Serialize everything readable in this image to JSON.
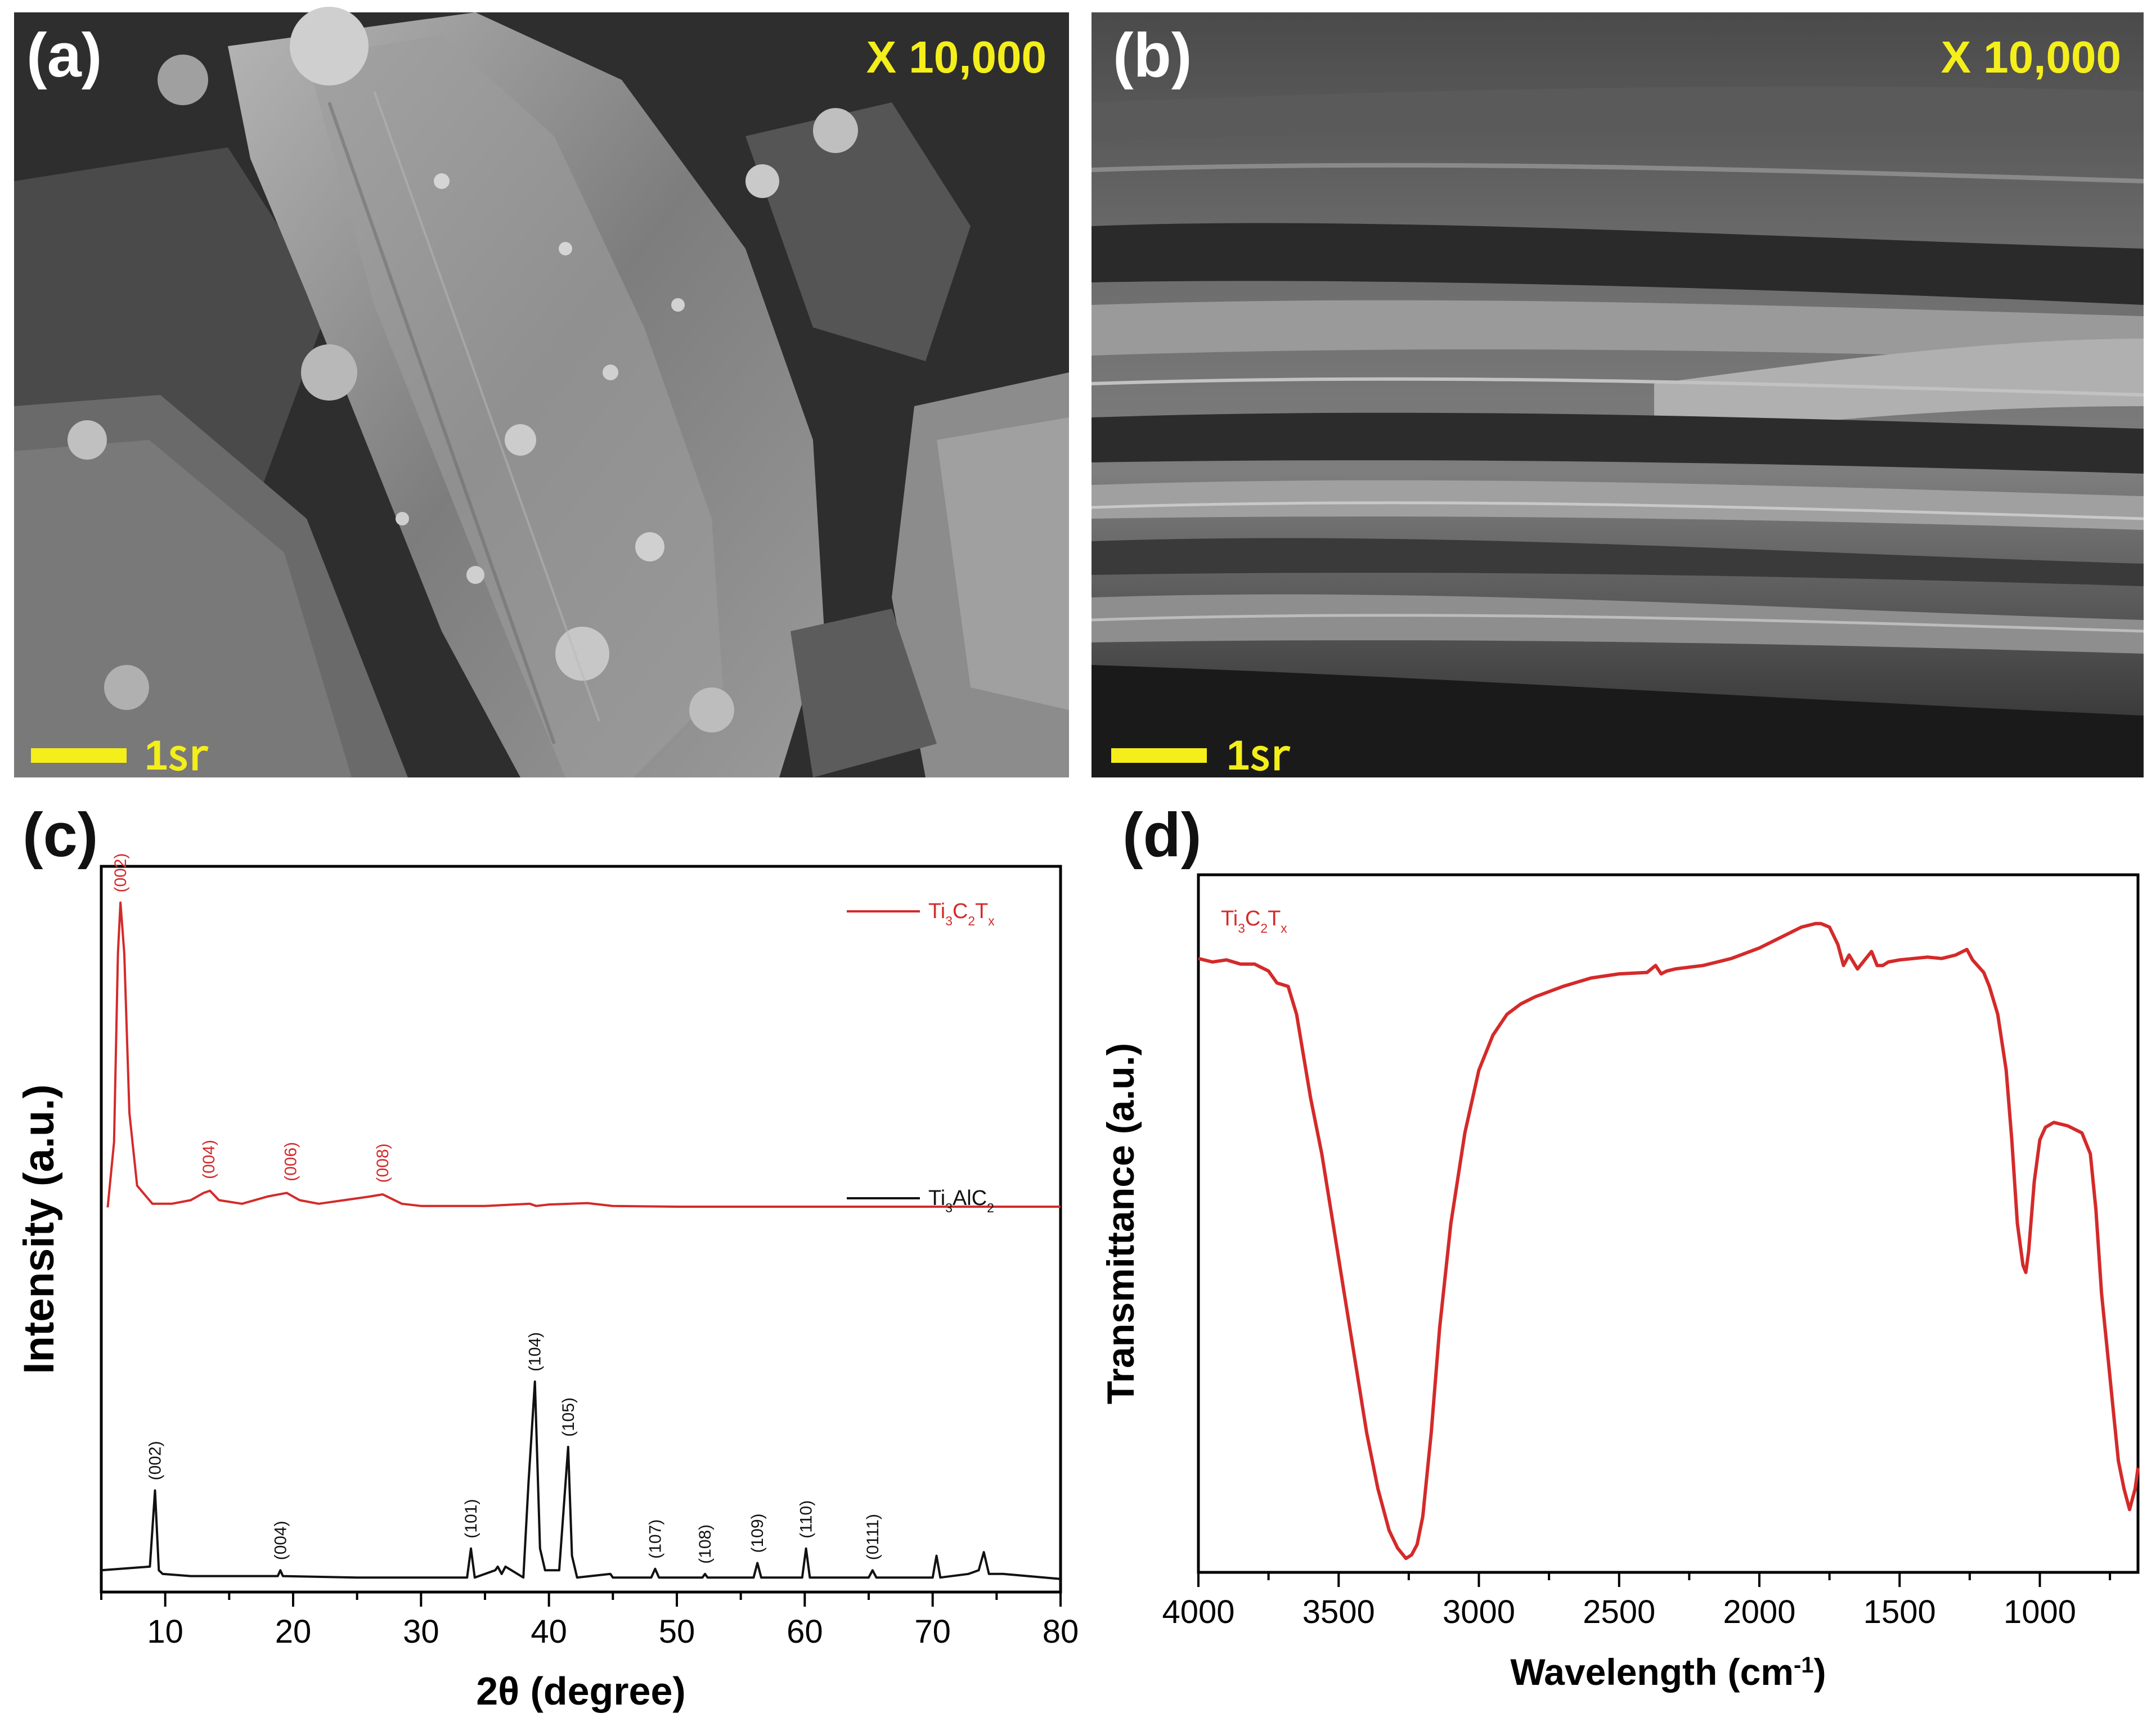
{
  "panels": {
    "a": {
      "letter": "(a)",
      "magnification": "X 10,000",
      "scale": "1㏛"
    },
    "b": {
      "letter": "(b)",
      "magnification": "X 10,000",
      "scale": "1㏛"
    },
    "c": {
      "letter": "(c)"
    },
    "d": {
      "letter": "(d)"
    }
  },
  "colors": {
    "red": "#d42a2a",
    "black": "#111111",
    "yellow": "#f4ee1b"
  },
  "chart_data": [
    {
      "id": "c",
      "type": "line",
      "xlabel": "2θ (degree)",
      "ylabel": "Intensity (a.u.)",
      "xlim": [
        5,
        80
      ],
      "xticks": [
        10,
        20,
        30,
        40,
        50,
        60,
        70,
        80
      ],
      "yticks_shown": false,
      "legend_placement": "right",
      "series": [
        {
          "name": "Ti3C2Tx",
          "legend_parts": [
            "Ti",
            "3",
            "C",
            "2",
            "T",
            "x"
          ],
          "color": "#d42a2a",
          "baseline": 0.53,
          "x": [
            5.5,
            6.0,
            6.3,
            6.5,
            6.8,
            7.2,
            7.8,
            9.0,
            10.5,
            12.0,
            13.0,
            13.5,
            14.2,
            16,
            18,
            19.5,
            20.5,
            22,
            24,
            26,
            27,
            28.5,
            30,
            35,
            38.5,
            39,
            40,
            43,
            45,
            50,
            60,
            70,
            80
          ],
          "y": [
            0.53,
            0.62,
            0.88,
            0.95,
            0.88,
            0.66,
            0.56,
            0.535,
            0.535,
            0.54,
            0.55,
            0.553,
            0.54,
            0.535,
            0.545,
            0.55,
            0.54,
            0.535,
            0.54,
            0.545,
            0.548,
            0.535,
            0.532,
            0.532,
            0.535,
            0.532,
            0.534,
            0.536,
            0.532,
            0.531,
            0.531,
            0.531,
            0.531
          ],
          "peaks": [
            {
              "x": 6.5,
              "y": 0.95,
              "label": "(002)"
            },
            {
              "x": 13.4,
              "y": 0.555,
              "label": "(004)"
            },
            {
              "x": 19.8,
              "y": 0.552,
              "label": "(006)"
            },
            {
              "x": 27.0,
              "y": 0.55,
              "label": "(008)"
            }
          ]
        },
        {
          "name": "Ti3AlC2",
          "legend_parts": [
            "Ti",
            "3",
            "AlC",
            "2"
          ],
          "color": "#111111",
          "baseline": 0.02,
          "x": [
            5.0,
            8.8,
            9.2,
            9.5,
            9.8,
            12,
            18.8,
            19.0,
            19.2,
            25,
            33.6,
            33.9,
            34.2,
            35.8,
            36.0,
            36.3,
            36.6,
            38.0,
            38.4,
            38.9,
            39.3,
            39.7,
            40.8,
            41.5,
            41.8,
            42.2,
            44.8,
            45,
            48.0,
            48.3,
            48.6,
            52.0,
            52.2,
            52.4,
            56.0,
            56.3,
            56.6,
            59.8,
            60.1,
            60.4,
            63,
            65.0,
            65.3,
            65.6,
            70.0,
            70.3,
            70.6,
            72.8,
            73.6,
            74.0,
            74.4,
            75.5,
            80
          ],
          "y": [
            0.03,
            0.035,
            0.14,
            0.03,
            0.025,
            0.022,
            0.022,
            0.03,
            0.022,
            0.02,
            0.02,
            0.06,
            0.02,
            0.03,
            0.035,
            0.025,
            0.035,
            0.02,
            0.15,
            0.29,
            0.06,
            0.03,
            0.03,
            0.2,
            0.05,
            0.02,
            0.025,
            0.02,
            0.02,
            0.032,
            0.02,
            0.02,
            0.025,
            0.02,
            0.02,
            0.04,
            0.02,
            0.02,
            0.06,
            0.02,
            0.02,
            0.02,
            0.03,
            0.02,
            0.02,
            0.05,
            0.02,
            0.025,
            0.03,
            0.055,
            0.025,
            0.025,
            0.018
          ],
          "peaks": [
            {
              "x": 9.2,
              "y": 0.14,
              "label": "(002)"
            },
            {
              "x": 19.0,
              "y": 0.03,
              "label": "(004)"
            },
            {
              "x": 33.9,
              "y": 0.06,
              "label": "(101)"
            },
            {
              "x": 38.9,
              "y": 0.29,
              "label": "(104)"
            },
            {
              "x": 41.5,
              "y": 0.2,
              "label": "(105)"
            },
            {
              "x": 48.3,
              "y": 0.032,
              "label": "(107)"
            },
            {
              "x": 52.2,
              "y": 0.025,
              "label": "(108)"
            },
            {
              "x": 56.3,
              "y": 0.04,
              "label": "(109)"
            },
            {
              "x": 60.1,
              "y": 0.06,
              "label": "(110)"
            },
            {
              "x": 65.3,
              "y": 0.03,
              "label": "(0111)"
            }
          ]
        }
      ]
    },
    {
      "id": "d",
      "type": "line",
      "xlabel": "Wavelength (cm⁻¹)",
      "xlabel_parts": [
        "Wavelength (cm",
        "-1",
        ")"
      ],
      "ylabel": "Transmittance (a.u.)",
      "xlim": [
        4000,
        650
      ],
      "xticks": [
        4000,
        3500,
        3000,
        2500,
        2000,
        1500,
        1000
      ],
      "yticks_shown": false,
      "legend_placement": "top-left",
      "series": [
        {
          "name": "Ti3C2Tx",
          "legend_parts": [
            "Ti",
            "3",
            "C",
            "2",
            "T",
            "x"
          ],
          "color": "#d42a2a",
          "x": [
            4000,
            3950,
            3900,
            3850,
            3800,
            3750,
            3720,
            3680,
            3650,
            3600,
            3560,
            3520,
            3480,
            3440,
            3400,
            3360,
            3320,
            3290,
            3260,
            3240,
            3220,
            3200,
            3170,
            3140,
            3100,
            3050,
            3000,
            2950,
            2900,
            2850,
            2800,
            2700,
            2600,
            2500,
            2400,
            2370,
            2350,
            2330,
            2300,
            2200,
            2100,
            2000,
            1950,
            1900,
            1850,
            1800,
            1780,
            1750,
            1720,
            1700,
            1680,
            1650,
            1620,
            1600,
            1580,
            1560,
            1540,
            1500,
            1450,
            1400,
            1350,
            1300,
            1260,
            1240,
            1200,
            1180,
            1150,
            1120,
            1100,
            1080,
            1060,
            1050,
            1040,
            1020,
            1000,
            980,
            950,
            900,
            850,
            820,
            800,
            780,
            760,
            740,
            720,
            700,
            680,
            660,
            650
          ],
          "y": [
            0.88,
            0.875,
            0.878,
            0.872,
            0.872,
            0.862,
            0.845,
            0.84,
            0.8,
            0.68,
            0.6,
            0.5,
            0.4,
            0.3,
            0.2,
            0.12,
            0.06,
            0.035,
            0.02,
            0.025,
            0.04,
            0.08,
            0.2,
            0.35,
            0.5,
            0.63,
            0.72,
            0.77,
            0.8,
            0.815,
            0.825,
            0.84,
            0.852,
            0.858,
            0.86,
            0.87,
            0.858,
            0.862,
            0.865,
            0.87,
            0.88,
            0.895,
            0.905,
            0.915,
            0.925,
            0.93,
            0.93,
            0.925,
            0.9,
            0.87,
            0.885,
            0.865,
            0.88,
            0.89,
            0.87,
            0.87,
            0.875,
            0.878,
            0.88,
            0.882,
            0.88,
            0.885,
            0.893,
            0.878,
            0.86,
            0.84,
            0.8,
            0.72,
            0.62,
            0.5,
            0.44,
            0.43,
            0.46,
            0.56,
            0.62,
            0.638,
            0.645,
            0.64,
            0.63,
            0.6,
            0.52,
            0.4,
            0.32,
            0.24,
            0.16,
            0.12,
            0.09,
            0.12,
            0.15
          ]
        }
      ]
    }
  ]
}
